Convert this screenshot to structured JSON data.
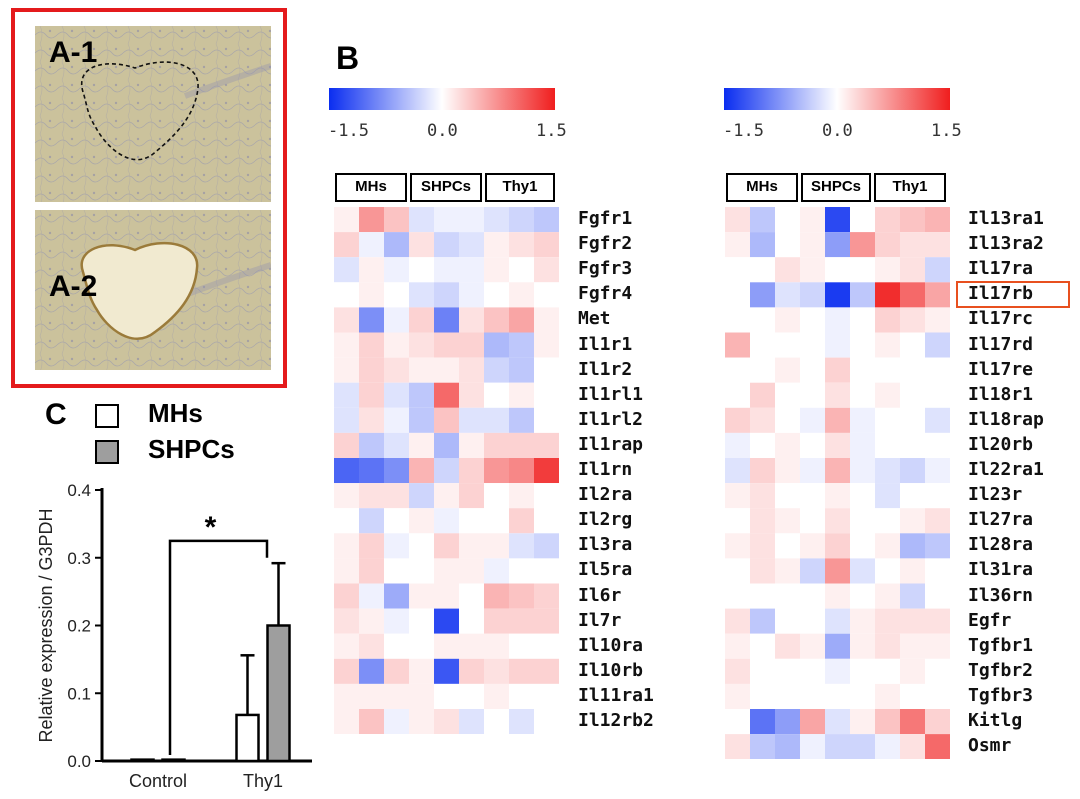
{
  "panel_a": {
    "border_color": "#e41a1c",
    "images": [
      {
        "label": "A-1"
      },
      {
        "label": "A-2"
      }
    ]
  },
  "panel_b": {
    "label": "B",
    "colorscale": {
      "min": "-1.5",
      "mid": "0.0",
      "max": "1.5",
      "low_color": "#0a2df0",
      "mid_color": "#ffffff",
      "high_color": "#f01e1e"
    },
    "groups": [
      "MHs",
      "SHPCs",
      "Thy1"
    ],
    "heatmaps": [
      {
        "genes": [
          "Fgfr1",
          "Fgfr2",
          "Fgfr3",
          "Fgfr4",
          "Met",
          "Il1r1",
          "Il1r2",
          "Il1rl1",
          "Il1rl2",
          "Il1rap",
          "Il1rn",
          "Il2ra",
          "Il2rg",
          "Il3ra",
          "Il5ra",
          "Il6r",
          "Il7r",
          "Il10ra",
          "Il10rb",
          "Il11ra1",
          "Il12rb2"
        ],
        "gene_labels": [
          "Fgfr1",
          "Fgfr2",
          "Fgfr3",
          "Fgfr4",
          "Met",
          "Il1r1",
          "Il1r2",
          "Il1rl1",
          "Il1rl2",
          "Il1rap",
          "Il1rn",
          "Il2ra",
          "Il2rg",
          "Il3ra",
          "Il5ra",
          "Il6r",
          "Il7r",
          "Il10ra",
          "Il10rb",
          "Il11ra1",
          "Il12rb2"
        ],
        "values": [
          [
            0.1,
            0.7,
            0.4,
            -0.2,
            -0.1,
            -0.1,
            -0.2,
            -0.3,
            -0.4
          ],
          [
            0.3,
            -0.1,
            -0.5,
            0.2,
            -0.3,
            -0.2,
            0.1,
            0.2,
            0.3
          ],
          [
            -0.2,
            0.1,
            -0.1,
            0.0,
            -0.1,
            -0.1,
            0.1,
            0.0,
            0.2
          ],
          [
            0.0,
            0.1,
            0.0,
            -0.2,
            -0.3,
            -0.1,
            0.0,
            0.1,
            0.0
          ],
          [
            0.2,
            -0.8,
            -0.1,
            0.3,
            -0.9,
            0.2,
            0.4,
            0.6,
            0.1
          ],
          [
            0.1,
            0.3,
            0.1,
            0.2,
            0.3,
            0.3,
            -0.5,
            -0.4,
            0.1
          ],
          [
            0.1,
            0.3,
            0.2,
            0.1,
            0.1,
            0.2,
            -0.3,
            -0.4,
            0.0
          ],
          [
            -0.2,
            0.3,
            -0.2,
            -0.4,
            1.0,
            0.2,
            0.0,
            0.1,
            0.0
          ],
          [
            -0.2,
            0.2,
            -0.1,
            -0.4,
            0.4,
            -0.2,
            -0.2,
            -0.4,
            0.0
          ],
          [
            0.3,
            -0.4,
            -0.2,
            0.1,
            -0.5,
            0.1,
            0.3,
            0.3,
            0.3
          ],
          [
            -1.1,
            -1.0,
            -0.8,
            0.5,
            -0.3,
            0.3,
            0.7,
            0.8,
            1.3
          ],
          [
            0.1,
            0.2,
            0.2,
            -0.3,
            0.1,
            0.3,
            0.0,
            0.1,
            0.0
          ],
          [
            0.0,
            -0.3,
            0.0,
            0.1,
            -0.1,
            0.0,
            0.0,
            0.3,
            0.0
          ],
          [
            0.1,
            0.3,
            -0.1,
            0.0,
            0.3,
            0.1,
            0.1,
            -0.2,
            -0.3
          ],
          [
            0.1,
            0.3,
            0.0,
            0.0,
            0.1,
            0.1,
            -0.1,
            0.0,
            0.0
          ],
          [
            0.3,
            -0.1,
            -0.6,
            0.1,
            0.1,
            0.0,
            0.5,
            0.4,
            0.3
          ],
          [
            0.2,
            0.1,
            -0.1,
            0.0,
            -1.3,
            0.0,
            0.3,
            0.3,
            0.3
          ],
          [
            0.1,
            0.2,
            0.0,
            0.0,
            0.1,
            0.1,
            0.1,
            0.0,
            0.0
          ],
          [
            0.3,
            -0.8,
            0.3,
            0.1,
            -1.2,
            0.3,
            0.2,
            0.3,
            0.3
          ],
          [
            0.1,
            0.1,
            0.1,
            0.1,
            0.0,
            0.0,
            0.1,
            0.0,
            0.0
          ],
          [
            0.1,
            0.4,
            -0.1,
            0.1,
            0.2,
            -0.2,
            0.0,
            -0.2,
            0.0
          ]
        ]
      },
      {
        "genes": [
          "Il13ra1",
          "Il13ra2",
          "Il17ra",
          "Il17rb",
          "Il17rc",
          "Il17rd",
          "Il17re",
          "Il18r1",
          "Il18rap",
          "Il20rb",
          "Il22ra1",
          "Il23r",
          "Il27ra",
          "Il28ra",
          "Il31ra",
          "Il36rn",
          "Egfr",
          "Tgfbr1",
          "Tgfbr2",
          "Tgfbr3",
          "Kitlg",
          "Osmr"
        ],
        "gene_labels": [
          "Il13ra1",
          "Il13ra2",
          "Il17ra",
          "Il17rb",
          "Il17rc",
          "Il17rd",
          "Il17re",
          "Il18r1",
          "Il18rap",
          "Il20rb",
          "Il22ra1",
          "Il23r",
          "Il27ra",
          "Il28ra",
          "Il31ra",
          "Il36rn",
          "Egfr",
          "Tgfbr1",
          "Tgfbr2",
          "Tgfbr3",
          "Kitlg",
          "Osmr"
        ],
        "highlighted_gene": "Il17rb",
        "highlight_color": "#e8501f",
        "values": [
          [
            0.2,
            -0.4,
            0.0,
            0.1,
            -1.3,
            0.0,
            0.3,
            0.4,
            0.5
          ],
          [
            0.1,
            -0.5,
            0.0,
            0.1,
            -0.7,
            0.7,
            0.3,
            0.2,
            0.2
          ],
          [
            0.0,
            0.0,
            0.2,
            0.1,
            0.0,
            0.0,
            0.1,
            0.2,
            -0.3
          ],
          [
            0.0,
            -0.7,
            -0.2,
            -0.3,
            -1.4,
            -0.4,
            1.4,
            1.0,
            0.6
          ],
          [
            0.0,
            0.0,
            0.1,
            0.0,
            -0.1,
            0.0,
            0.3,
            0.2,
            0.1
          ],
          [
            0.5,
            0.0,
            0.0,
            0.0,
            -0.1,
            0.0,
            0.1,
            0.0,
            -0.3
          ],
          [
            0.0,
            0.0,
            0.1,
            0.0,
            0.3,
            0.0,
            0.0,
            0.0,
            0.0
          ],
          [
            0.0,
            0.3,
            0.0,
            0.0,
            0.2,
            0.0,
            0.1,
            0.0,
            0.0
          ],
          [
            0.3,
            0.2,
            0.0,
            -0.1,
            0.5,
            -0.1,
            0.0,
            0.0,
            -0.2
          ],
          [
            -0.1,
            0.0,
            0.1,
            0.0,
            0.2,
            -0.1,
            0.0,
            0.0,
            0.0
          ],
          [
            -0.2,
            0.3,
            0.1,
            -0.1,
            0.5,
            -0.1,
            -0.2,
            -0.3,
            -0.1
          ],
          [
            0.1,
            0.2,
            0.0,
            0.0,
            0.1,
            0.0,
            -0.2,
            0.0,
            0.0
          ],
          [
            0.0,
            0.2,
            0.1,
            0.0,
            0.2,
            0.0,
            0.0,
            0.1,
            0.2
          ],
          [
            0.1,
            0.2,
            0.0,
            0.1,
            0.3,
            0.0,
            0.1,
            -0.5,
            -0.4
          ],
          [
            0.0,
            0.2,
            0.1,
            -0.3,
            0.7,
            -0.2,
            0.0,
            0.1,
            0.0
          ],
          [
            0.0,
            0.0,
            0.0,
            0.0,
            0.1,
            0.0,
            0.1,
            -0.3,
            0.0
          ],
          [
            0.2,
            -0.4,
            0.0,
            0.0,
            -0.2,
            0.1,
            0.2,
            0.2,
            0.2
          ],
          [
            0.1,
            0.0,
            0.2,
            0.1,
            -0.6,
            0.1,
            0.2,
            0.1,
            0.1
          ],
          [
            0.2,
            0.0,
            0.0,
            0.0,
            -0.1,
            0.0,
            0.0,
            0.1,
            0.0
          ],
          [
            0.1,
            0.0,
            0.0,
            0.0,
            0.0,
            0.0,
            0.1,
            0.0,
            0.0
          ],
          [
            0.0,
            -1.0,
            -0.7,
            0.6,
            -0.2,
            0.1,
            0.4,
            0.9,
            0.3
          ],
          [
            0.2,
            -0.4,
            -0.5,
            -0.1,
            -0.3,
            -0.3,
            -0.1,
            0.2,
            1.0
          ]
        ]
      }
    ]
  },
  "panel_c": {
    "label": "C",
    "chart_data": {
      "type": "bar",
      "title": "",
      "categories": [
        "Control",
        "Thy1"
      ],
      "series": [
        {
          "name": "MHs",
          "values": [
            0.002,
            0.068
          ],
          "errors": [
            0.0,
            0.088
          ],
          "color": "#ffffff"
        },
        {
          "name": "SHPCs",
          "values": [
            0.002,
            0.2
          ],
          "errors": [
            0.0,
            0.092
          ],
          "color": "#9e9e9e"
        }
      ],
      "xlabel": "",
      "ylabel": "Relative expression / G3PDH",
      "ylim": [
        0,
        0.4
      ],
      "yticks": [
        "0.0",
        "0.1",
        "0.2",
        "0.3",
        "0.4"
      ],
      "significance": "*",
      "legend": "top"
    }
  }
}
